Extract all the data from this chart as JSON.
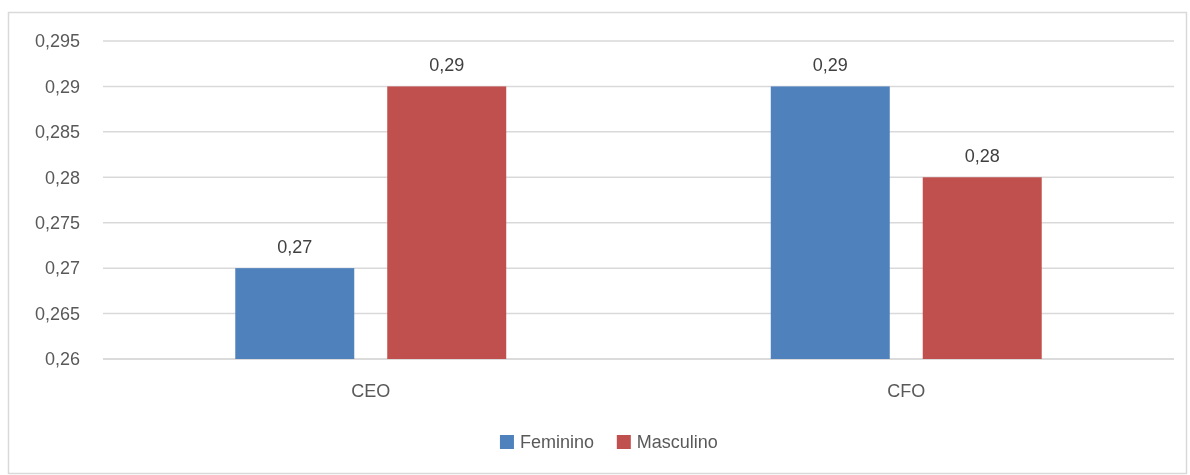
{
  "chart_data": {
    "type": "bar",
    "categories": [
      "CEO",
      "CFO"
    ],
    "series": [
      {
        "name": "Feminino",
        "color": "#4f81bd",
        "values": [
          0.27,
          0.29
        ],
        "value_labels": [
          "0,27",
          "0,29"
        ]
      },
      {
        "name": "Masculino",
        "color": "#c0504d",
        "values": [
          0.29,
          0.28
        ],
        "value_labels": [
          "0,29",
          "0,28"
        ]
      }
    ],
    "ylim": [
      0.26,
      0.295
    ],
    "yticks": [
      {
        "value": 0.26,
        "label": "0,26"
      },
      {
        "value": 0.265,
        "label": "0,265"
      },
      {
        "value": 0.27,
        "label": "0,27"
      },
      {
        "value": 0.275,
        "label": "0,275"
      },
      {
        "value": 0.28,
        "label": "0,28"
      },
      {
        "value": 0.285,
        "label": "0,285"
      },
      {
        "value": 0.29,
        "label": "0,29"
      },
      {
        "value": 0.295,
        "label": "0,295"
      }
    ],
    "grid": "y",
    "legend": "bottom"
  }
}
